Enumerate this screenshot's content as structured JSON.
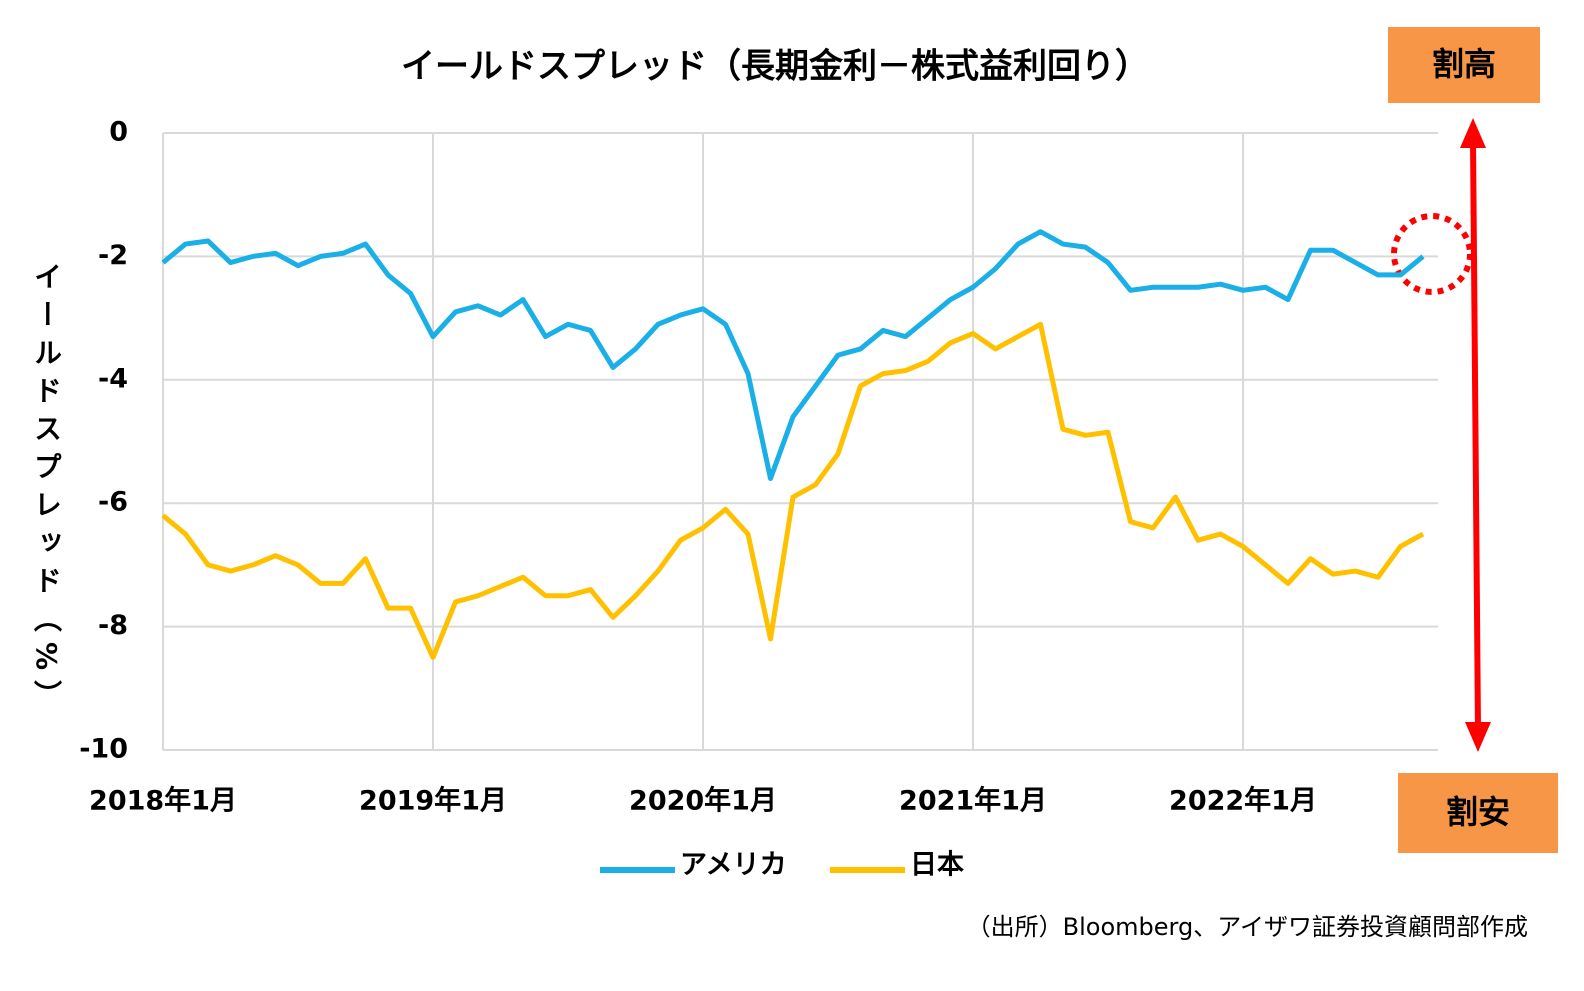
{
  "chart_data": {
    "type": "line",
    "title": "イールドスプレッド（長期金利－株式益利回り）",
    "y_label": "イールドスプレッド（%）",
    "x": [
      "2018-01",
      "2018-02",
      "2018-03",
      "2018-04",
      "2018-05",
      "2018-06",
      "2018-07",
      "2018-08",
      "2018-09",
      "2018-10",
      "2018-11",
      "2018-12",
      "2019-01",
      "2019-02",
      "2019-03",
      "2019-04",
      "2019-05",
      "2019-06",
      "2019-07",
      "2019-08",
      "2019-09",
      "2019-10",
      "2019-11",
      "2019-12",
      "2020-01",
      "2020-02",
      "2020-03",
      "2020-04",
      "2020-05",
      "2020-06",
      "2020-07",
      "2020-08",
      "2020-09",
      "2020-10",
      "2020-11",
      "2020-12",
      "2021-01",
      "2021-02",
      "2021-03",
      "2021-04",
      "2021-05",
      "2021-06",
      "2021-07",
      "2021-08",
      "2021-09",
      "2021-10",
      "2021-11",
      "2021-12",
      "2022-01",
      "2022-02",
      "2022-03",
      "2022-04",
      "2022-05",
      "2022-06",
      "2022-07",
      "2022-08",
      "2022-09"
    ],
    "series": [
      {
        "name": "アメリカ",
        "color": "#1aafe6",
        "values": [
          -2.1,
          -1.8,
          -1.75,
          -2.1,
          -2.0,
          -1.95,
          -2.15,
          -2.0,
          -1.95,
          -1.8,
          -2.3,
          -2.6,
          -3.3,
          -2.9,
          -2.8,
          -2.95,
          -2.7,
          -3.3,
          -3.1,
          -3.2,
          -3.8,
          -3.5,
          -3.1,
          -2.95,
          -2.85,
          -3.1,
          -3.9,
          -5.6,
          -4.6,
          -4.1,
          -3.6,
          -3.5,
          -3.2,
          -3.3,
          -3.0,
          -2.7,
          -2.5,
          -2.2,
          -1.8,
          -1.6,
          -1.8,
          -1.85,
          -2.1,
          -2.55,
          -2.5,
          -2.5,
          -2.5,
          -2.45,
          -2.55,
          -2.5,
          -2.7,
          -1.9,
          -1.9,
          -2.1,
          -2.3,
          -2.3,
          -2.0
        ]
      },
      {
        "name": "日本",
        "color": "#ffc000",
        "values": [
          -6.2,
          -6.5,
          -7.0,
          -7.1,
          -7.0,
          -6.85,
          -7.0,
          -7.3,
          -7.3,
          -6.9,
          -7.7,
          -7.7,
          -8.5,
          -7.6,
          -7.5,
          -7.35,
          -7.2,
          -7.5,
          -7.5,
          -7.4,
          -7.85,
          -7.5,
          -7.1,
          -6.6,
          -6.4,
          -6.1,
          -6.5,
          -8.2,
          -5.9,
          -5.7,
          -5.2,
          -4.1,
          -3.9,
          -3.85,
          -3.7,
          -3.4,
          -3.25,
          -3.5,
          -3.3,
          -3.1,
          -4.8,
          -4.9,
          -4.85,
          -6.3,
          -6.4,
          -5.9,
          -6.6,
          -6.5,
          -6.7,
          -7.0,
          -7.3,
          -6.9,
          -7.15,
          -7.1,
          -7.2,
          -6.7,
          -6.5
        ]
      }
    ],
    "ylim": [
      -10,
      0
    ],
    "yticks": [
      0,
      -2,
      -4,
      -6,
      -8,
      -10
    ],
    "xticks": [
      {
        "value": "2018-01",
        "label": "2018年1月"
      },
      {
        "value": "2019-01",
        "label": "2019年1月"
      },
      {
        "value": "2020-01",
        "label": "2020年1月"
      },
      {
        "value": "2021-01",
        "label": "2021年1月"
      },
      {
        "value": "2022-01",
        "label": "2022年1月"
      }
    ],
    "grid": true,
    "annotations": [
      "割高",
      "割安"
    ],
    "source": "（出所）Bloomberg、アイザワ証券投資顧問部作成"
  }
}
